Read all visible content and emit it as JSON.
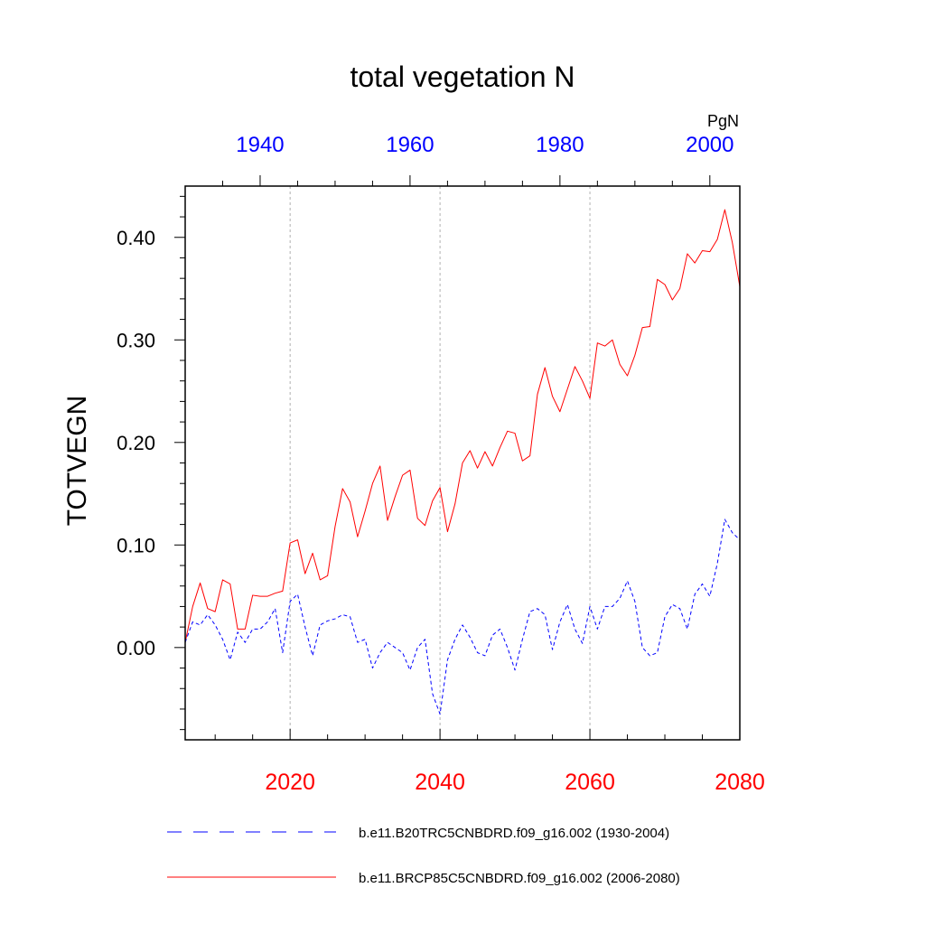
{
  "chart_data": {
    "type": "line",
    "title": "total vegetation N",
    "ylabel": "TOTVEGN",
    "units": "PgN",
    "ylim": [
      -0.09,
      0.45
    ],
    "yticks": [
      0.0,
      0.1,
      0.2,
      0.3,
      0.4
    ],
    "ytick_labels": [
      "0.00",
      "0.10",
      "0.20",
      "0.30",
      "0.40"
    ],
    "bottom_axis": {
      "range": [
        2006,
        2080
      ],
      "ticks": [
        2020,
        2040,
        2060,
        2080
      ],
      "tick_labels": [
        "2020",
        "2040",
        "2060",
        "2080"
      ],
      "color": "#ff0000"
    },
    "top_axis": {
      "range": [
        1930,
        2004
      ],
      "ticks": [
        1940,
        1960,
        1980,
        2000
      ],
      "tick_labels": [
        "1940",
        "1960",
        "1980",
        "2000"
      ],
      "color": "#0000ff"
    },
    "gridlines_x": [
      2020,
      2040,
      2060
    ],
    "series": [
      {
        "name": "b.e11.BRCP85C5CNBDRD.f09_g16.002 (2006-2080)",
        "axis": "bottom",
        "color": "#ff0000",
        "style": "solid",
        "x_start": 2006,
        "values": [
          0.005,
          0.04,
          0.063,
          0.038,
          0.035,
          0.066,
          0.062,
          0.018,
          0.018,
          0.051,
          0.05,
          0.05,
          0.053,
          0.055,
          0.102,
          0.105,
          0.072,
          0.092,
          0.066,
          0.07,
          0.118,
          0.155,
          0.142,
          0.108,
          0.133,
          0.16,
          0.177,
          0.124,
          0.147,
          0.168,
          0.173,
          0.126,
          0.119,
          0.143,
          0.156,
          0.113,
          0.14,
          0.18,
          0.192,
          0.175,
          0.191,
          0.177,
          0.195,
          0.211,
          0.209,
          0.182,
          0.187,
          0.247,
          0.273,
          0.245,
          0.23,
          0.252,
          0.274,
          0.26,
          0.243,
          0.297,
          0.294,
          0.3,
          0.276,
          0.265,
          0.285,
          0.312,
          0.313,
          0.359,
          0.354,
          0.339,
          0.35,
          0.384,
          0.375,
          0.387,
          0.386,
          0.398,
          0.427,
          0.395,
          0.352
        ]
      },
      {
        "name": "b.e11.B20TRC5CNBDRD.f09_g16.002 (1930-2004)",
        "axis": "top",
        "color": "#0000ff",
        "style": "dashed",
        "x_start": 1930,
        "values": [
          0.005,
          0.025,
          0.022,
          0.032,
          0.022,
          0.008,
          -0.012,
          0.015,
          0.005,
          0.018,
          0.018,
          0.025,
          0.038,
          -0.005,
          0.045,
          0.052,
          0.02,
          -0.008,
          0.022,
          0.026,
          0.028,
          0.032,
          0.03,
          0.005,
          0.008,
          -0.02,
          -0.005,
          0.005,
          0.0,
          -0.005,
          -0.022,
          0.0,
          0.008,
          -0.045,
          -0.065,
          -0.012,
          0.008,
          0.022,
          0.01,
          -0.005,
          -0.008,
          0.012,
          0.018,
          0.0,
          -0.022,
          0.008,
          0.035,
          0.038,
          0.032,
          -0.002,
          0.025,
          0.042,
          0.018,
          0.004,
          0.04,
          0.018,
          0.04,
          0.04,
          0.048,
          0.065,
          0.045,
          0.0,
          -0.008,
          -0.005,
          0.03,
          0.042,
          0.038,
          0.018,
          0.052,
          0.062,
          0.05,
          0.082,
          0.125,
          0.112,
          0.105
        ]
      }
    ]
  }
}
